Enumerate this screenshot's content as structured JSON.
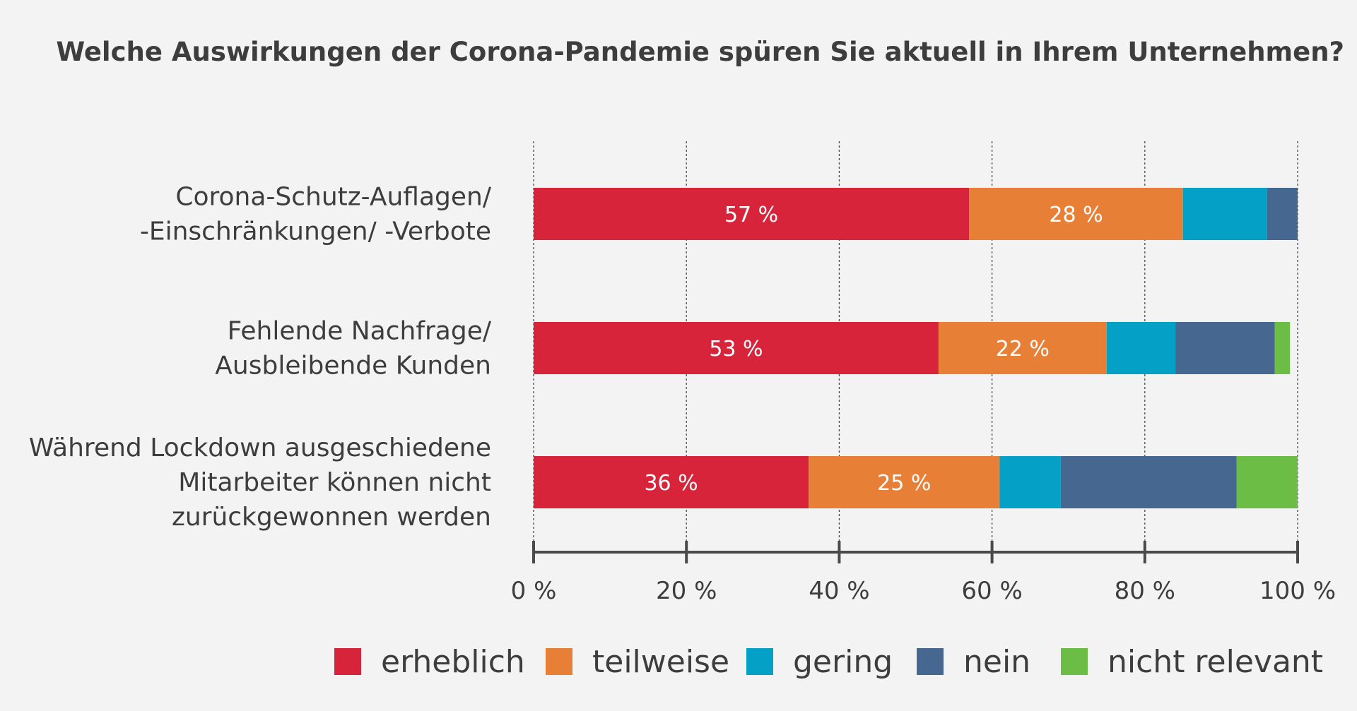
{
  "chart_data": {
    "type": "bar",
    "orientation": "horizontal",
    "stacked": true,
    "title": "Welche Auswirkungen der Corona-Pandemie spüren Sie aktuell in Ihrem Unternehmen?",
    "categories": [
      [
        "Corona-Schutz-Auflagen/",
        "-Einschränkungen/ -Verbote"
      ],
      [
        "Fehlende Nachfrage/",
        "Ausbleibende Kunden"
      ],
      [
        "Während Lockdown ausgeschiedene",
        "Mitarbeiter können nicht",
        "zurückgewonnen werden"
      ]
    ],
    "series": [
      {
        "name": "erheblich",
        "color": "#d7243b",
        "values": [
          57,
          53,
          36
        ],
        "labels": [
          "57 %",
          "53 %",
          "36 %"
        ]
      },
      {
        "name": "teilweise",
        "color": "#e87f37",
        "values": [
          28,
          22,
          25
        ],
        "labels": [
          "28 %",
          "22 %",
          "25 %"
        ]
      },
      {
        "name": "gering",
        "color": "#05a0c6",
        "values": [
          11,
          9,
          8
        ],
        "labels": [
          "",
          "",
          ""
        ]
      },
      {
        "name": "nein",
        "color": "#466890",
        "values": [
          4,
          13,
          23
        ],
        "labels": [
          "",
          "",
          ""
        ]
      },
      {
        "name": "nicht relevant",
        "color": "#6cbd45",
        "values": [
          0,
          2,
          8
        ],
        "labels": [
          "",
          "",
          ""
        ]
      }
    ],
    "xlim": [
      0,
      100
    ],
    "xticks": [
      {
        "value": 0,
        "label": "0 %"
      },
      {
        "value": 20,
        "label": "20 %"
      },
      {
        "value": 40,
        "label": "40 %"
      },
      {
        "value": 60,
        "label": "60 %"
      },
      {
        "value": 80,
        "label": "80 %"
      },
      {
        "value": 100,
        "label": "100 %"
      }
    ],
    "grid": "vertical dashed",
    "legend_position": "bottom"
  }
}
